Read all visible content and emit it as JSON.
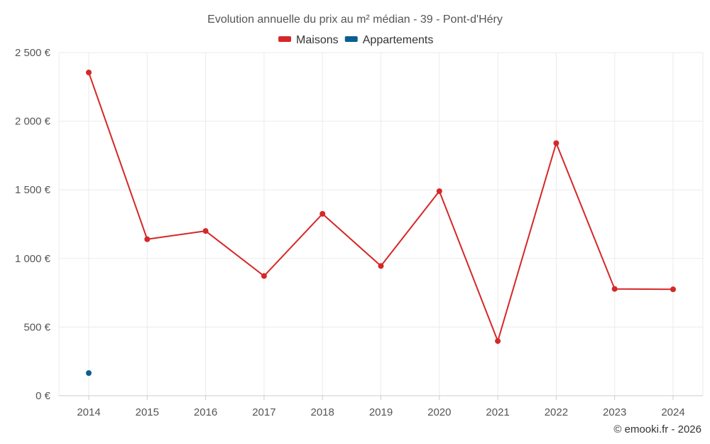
{
  "chart_data": {
    "type": "line",
    "title": "Evolution annuelle du prix au m² médian - 39 - Pont-d'Héry",
    "xlabel": "",
    "ylabel": "",
    "x": [
      2014,
      2015,
      2016,
      2017,
      2018,
      2019,
      2020,
      2021,
      2022,
      2023,
      2024
    ],
    "x_tick_labels": [
      "2014",
      "2015",
      "2016",
      "2017",
      "2018",
      "2019",
      "2020",
      "2021",
      "2022",
      "2023",
      "2024"
    ],
    "ylim": [
      0,
      2500
    ],
    "y_ticks": [
      0,
      500,
      1000,
      1500,
      2000,
      2500
    ],
    "y_tick_labels": [
      "0 €",
      "500 €",
      "1 000 €",
      "1 500 €",
      "2 000 €",
      "2 500 €"
    ],
    "grid": true,
    "legend_position": "top-center",
    "series": [
      {
        "name": "Maisons",
        "color": "#d62728",
        "values": [
          2355,
          1140,
          1200,
          872,
          1325,
          945,
          1490,
          398,
          1840,
          778,
          775
        ]
      },
      {
        "name": "Appartements",
        "color": "#0b5e91",
        "values": [
          165,
          null,
          null,
          null,
          null,
          null,
          null,
          null,
          null,
          null,
          null
        ]
      }
    ],
    "credit": "© emooki.fr - 2026"
  }
}
